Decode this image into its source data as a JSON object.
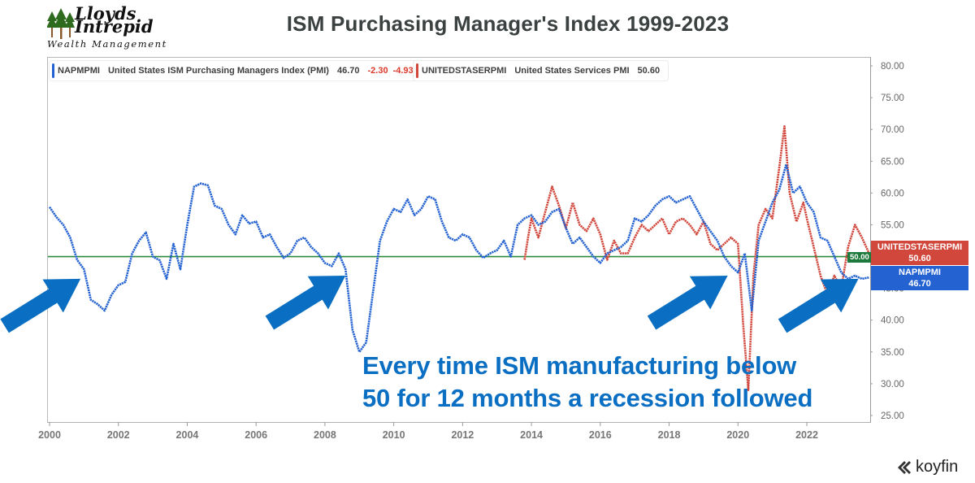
{
  "header": {
    "title": "ISM Purchasing Manager's Index 1999-2023",
    "logo": {
      "line1": "Lloyds",
      "line2": "Intrepid",
      "line3": "Wealth Management",
      "icon": "trees-icon"
    }
  },
  "legend": [
    {
      "ticker": "NAPMPMI",
      "name": "United States ISM Purchasing Managers Index (PMI)",
      "value": "46.70",
      "change": "-2.30",
      "change_pct": "-4.93",
      "pct_sign": "%",
      "color": "#2462d1"
    },
    {
      "ticker": "UNITEDSTASERPMI",
      "name": "United States Services PMI",
      "value": "50.60",
      "color": "#d1473c"
    }
  ],
  "price_tags": {
    "services": {
      "label": "UNITEDSTASERPMI",
      "value": "50.60"
    },
    "manufacturing": {
      "label": "NAPMPMI",
      "value": "46.70"
    },
    "reference": "50.00"
  },
  "annotation": {
    "line1": "Every time ISM manufacturing below",
    "line2": "50 for 12 months a recession followed",
    "color": "#0a6fc2"
  },
  "branding": {
    "text": "koyfin",
    "icon": "koyfin-logo-icon"
  },
  "chart_data": {
    "type": "line",
    "approximate": true,
    "note": "Axis labels, legend, title, annotation and endpoint values (46.70, 50.60, 50.00 reference) were read directly from the image. The monthly series values are approximations traced from pixel positions against gridlines (about +/-1 index point, +/-1-2 months); they are not source data. Only the overall shape and labelled endpoints are reliable.",
    "title": "ISM Purchasing Manager's Index 1999-2023",
    "xlabel": "",
    "ylabel": "",
    "xlim": [
      1999.95,
      2023.95
    ],
    "ylim": [
      23.7,
      81.2
    ],
    "x_ticks": [
      "2000",
      "2002",
      "2004",
      "2006",
      "2008",
      "2010",
      "2012",
      "2014",
      "2016",
      "2018",
      "2020",
      "2022"
    ],
    "x_tick_values": [
      2000,
      2002,
      2004,
      2006,
      2008,
      2010,
      2012,
      2014,
      2016,
      2018,
      2020,
      2022
    ],
    "y_ticks": [
      "25.00",
      "30.00",
      "35.00",
      "40.00",
      "45.00",
      "50.00",
      "55.00",
      "60.00",
      "65.00",
      "70.00",
      "75.00",
      "80.00"
    ],
    "y_tick_values": [
      25,
      30,
      35,
      40,
      45,
      50,
      55,
      60,
      65,
      70,
      75,
      80
    ],
    "reference_line": {
      "value": 50,
      "label": "50.00",
      "color": "#2b8a3e"
    },
    "grid": false,
    "legend_position": "top-left",
    "series": [
      {
        "name": "NAPMPMI",
        "color": "#2462d1",
        "x": [
          2000.0,
          2000.2,
          2000.4,
          2000.6,
          2000.8,
          2001.0,
          2001.2,
          2001.4,
          2001.6,
          2001.8,
          2002.0,
          2002.2,
          2002.4,
          2002.6,
          2002.8,
          2003.0,
          2003.2,
          2003.4,
          2003.6,
          2003.8,
          2004.0,
          2004.2,
          2004.4,
          2004.6,
          2004.8,
          2005.0,
          2005.2,
          2005.4,
          2005.6,
          2005.8,
          2006.0,
          2006.2,
          2006.4,
          2006.6,
          2006.8,
          2007.0,
          2007.2,
          2007.4,
          2007.6,
          2007.8,
          2008.0,
          2008.2,
          2008.4,
          2008.6,
          2008.8,
          2009.0,
          2009.2,
          2009.4,
          2009.6,
          2009.8,
          2010.0,
          2010.2,
          2010.4,
          2010.6,
          2010.8,
          2011.0,
          2011.2,
          2011.4,
          2011.6,
          2011.8,
          2012.0,
          2012.2,
          2012.4,
          2012.6,
          2012.8,
          2013.0,
          2013.2,
          2013.4,
          2013.6,
          2013.8,
          2014.0,
          2014.2,
          2014.4,
          2014.6,
          2014.8,
          2015.0,
          2015.2,
          2015.4,
          2015.6,
          2015.8,
          2016.0,
          2016.2,
          2016.4,
          2016.6,
          2016.8,
          2017.0,
          2017.2,
          2017.4,
          2017.6,
          2017.8,
          2018.0,
          2018.2,
          2018.4,
          2018.6,
          2018.8,
          2019.0,
          2019.2,
          2019.4,
          2019.6,
          2019.8,
          2020.0,
          2020.2,
          2020.4,
          2020.6,
          2020.8,
          2021.0,
          2021.2,
          2021.4,
          2021.6,
          2021.8,
          2022.0,
          2022.2,
          2022.4,
          2022.6,
          2022.8,
          2023.0,
          2023.2,
          2023.4,
          2023.6,
          2023.8
        ],
        "values": [
          57.8,
          56.2,
          55.0,
          53.0,
          49.5,
          48.0,
          43.2,
          42.5,
          41.5,
          44.0,
          45.5,
          46.0,
          50.5,
          52.5,
          53.8,
          50.0,
          49.4,
          46.5,
          52.0,
          48.0,
          55.0,
          61.0,
          61.5,
          61.2,
          58.0,
          57.5,
          55.0,
          53.5,
          56.5,
          55.2,
          55.5,
          53.0,
          53.5,
          51.5,
          49.8,
          50.5,
          52.5,
          53.0,
          51.5,
          50.5,
          49.0,
          48.5,
          50.5,
          48.0,
          38.5,
          35.0,
          36.5,
          44.5,
          52.5,
          55.5,
          57.5,
          57.0,
          59.0,
          56.5,
          57.5,
          59.5,
          59.0,
          55.5,
          53.0,
          52.5,
          53.5,
          53.0,
          51.0,
          49.8,
          50.5,
          51.0,
          52.5,
          50.0,
          55.0,
          56.0,
          56.5,
          55.0,
          55.5,
          57.0,
          57.5,
          54.5,
          52.0,
          53.0,
          51.5,
          50.0,
          49.0,
          50.5,
          51.0,
          51.5,
          52.5,
          56.0,
          55.5,
          56.5,
          58.0,
          59.0,
          59.5,
          58.5,
          59.0,
          59.5,
          57.5,
          55.5,
          54.0,
          52.5,
          50.0,
          48.5,
          47.5,
          50.5,
          41.5,
          52.5,
          55.5,
          58.5,
          60.5,
          64.5,
          60.0,
          61.0,
          58.5,
          57.0,
          53.0,
          52.5,
          50.0,
          47.5,
          46.5,
          47.0,
          46.5,
          46.7
        ]
      },
      {
        "name": "UNITEDSTASERPMI",
        "color": "#d1473c",
        "x": [
          2013.8,
          2013.9,
          2014.0,
          2014.2,
          2014.4,
          2014.6,
          2014.8,
          2015.0,
          2015.2,
          2015.4,
          2015.6,
          2015.8,
          2016.0,
          2016.2,
          2016.4,
          2016.6,
          2016.8,
          2017.0,
          2017.2,
          2017.4,
          2017.6,
          2017.8,
          2018.0,
          2018.2,
          2018.4,
          2018.6,
          2018.8,
          2019.0,
          2019.2,
          2019.4,
          2019.6,
          2019.8,
          2020.0,
          2020.15,
          2020.3,
          2020.45,
          2020.6,
          2020.8,
          2021.0,
          2021.2,
          2021.35,
          2021.5,
          2021.7,
          2021.9,
          2022.0,
          2022.2,
          2022.4,
          2022.6,
          2022.8,
          2023.0,
          2023.2,
          2023.4,
          2023.6,
          2023.8
        ],
        "values": [
          49.5,
          53.0,
          56.0,
          53.0,
          57.0,
          61.0,
          58.0,
          54.5,
          58.5,
          55.0,
          54.0,
          56.0,
          53.5,
          49.5,
          52.5,
          50.5,
          50.5,
          53.0,
          55.0,
          54.0,
          55.0,
          56.0,
          53.5,
          55.5,
          56.0,
          55.0,
          53.5,
          55.5,
          52.0,
          51.0,
          52.0,
          53.0,
          52.0,
          39.5,
          29.0,
          47.0,
          55.0,
          57.5,
          56.0,
          64.0,
          70.5,
          60.0,
          55.5,
          58.5,
          56.0,
          51.5,
          47.0,
          44.0,
          47.0,
          45.0,
          51.5,
          55.0,
          53.0,
          50.6
        ]
      }
    ],
    "annotations": [
      {
        "type": "arrow",
        "points_to": {
          "x": 2000.9,
          "y": 46.5
        }
      },
      {
        "type": "arrow",
        "points_to": {
          "x": 2008.6,
          "y": 47.0
        }
      },
      {
        "type": "arrow",
        "points_to": {
          "x": 2019.7,
          "y": 47.0
        }
      },
      {
        "type": "arrow",
        "points_to": {
          "x": 2023.5,
          "y": 46.5
        }
      }
    ]
  }
}
